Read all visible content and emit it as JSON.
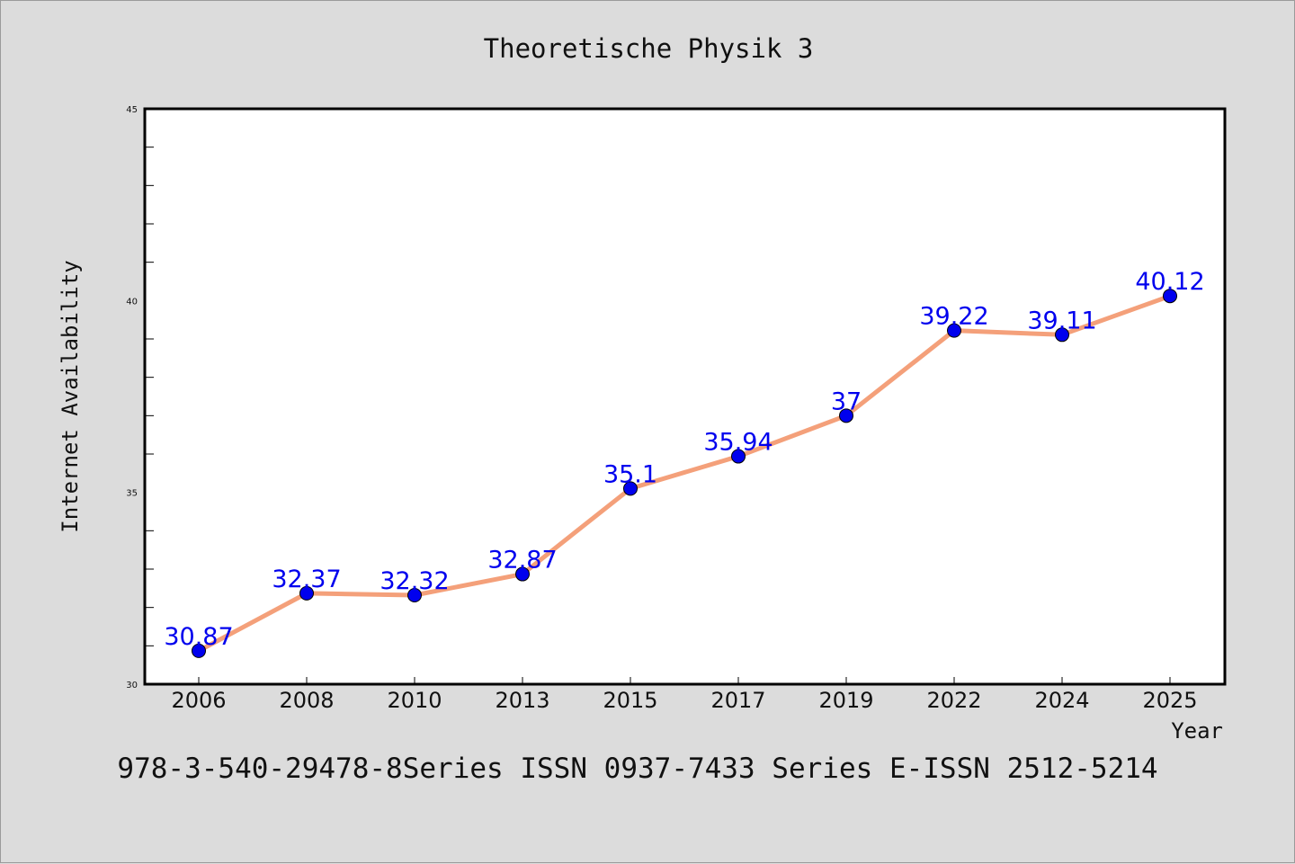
{
  "chart_data": {
    "type": "line",
    "title": "Theoretische Physik 3",
    "xlabel": "Year",
    "ylabel": "Internet Availability",
    "footer": "978-3-540-29478-8Series ISSN 0937-7433 Series E-ISSN 2512-5214",
    "categories": [
      "2006",
      "2008",
      "2010",
      "2013",
      "2015",
      "2017",
      "2019",
      "2022",
      "2024",
      "2025"
    ],
    "series": [
      {
        "values": [
          30.87,
          32.37,
          32.32,
          32.87,
          35.1,
          35.94,
          37,
          39.22,
          39.11,
          40.12
        ],
        "labels": [
          "30.87",
          "32.37",
          "32.32",
          "32.87",
          "35.1",
          "35.94",
          "37",
          "39.22",
          "39.11",
          "40.12"
        ]
      }
    ],
    "ylim": [
      30,
      45
    ],
    "yticks": [
      "30",
      "35",
      "40",
      "45"
    ],
    "grid": false,
    "line_color": "#f4a07a",
    "marker_color": "#0000ee",
    "label_color": "#0000ee"
  }
}
